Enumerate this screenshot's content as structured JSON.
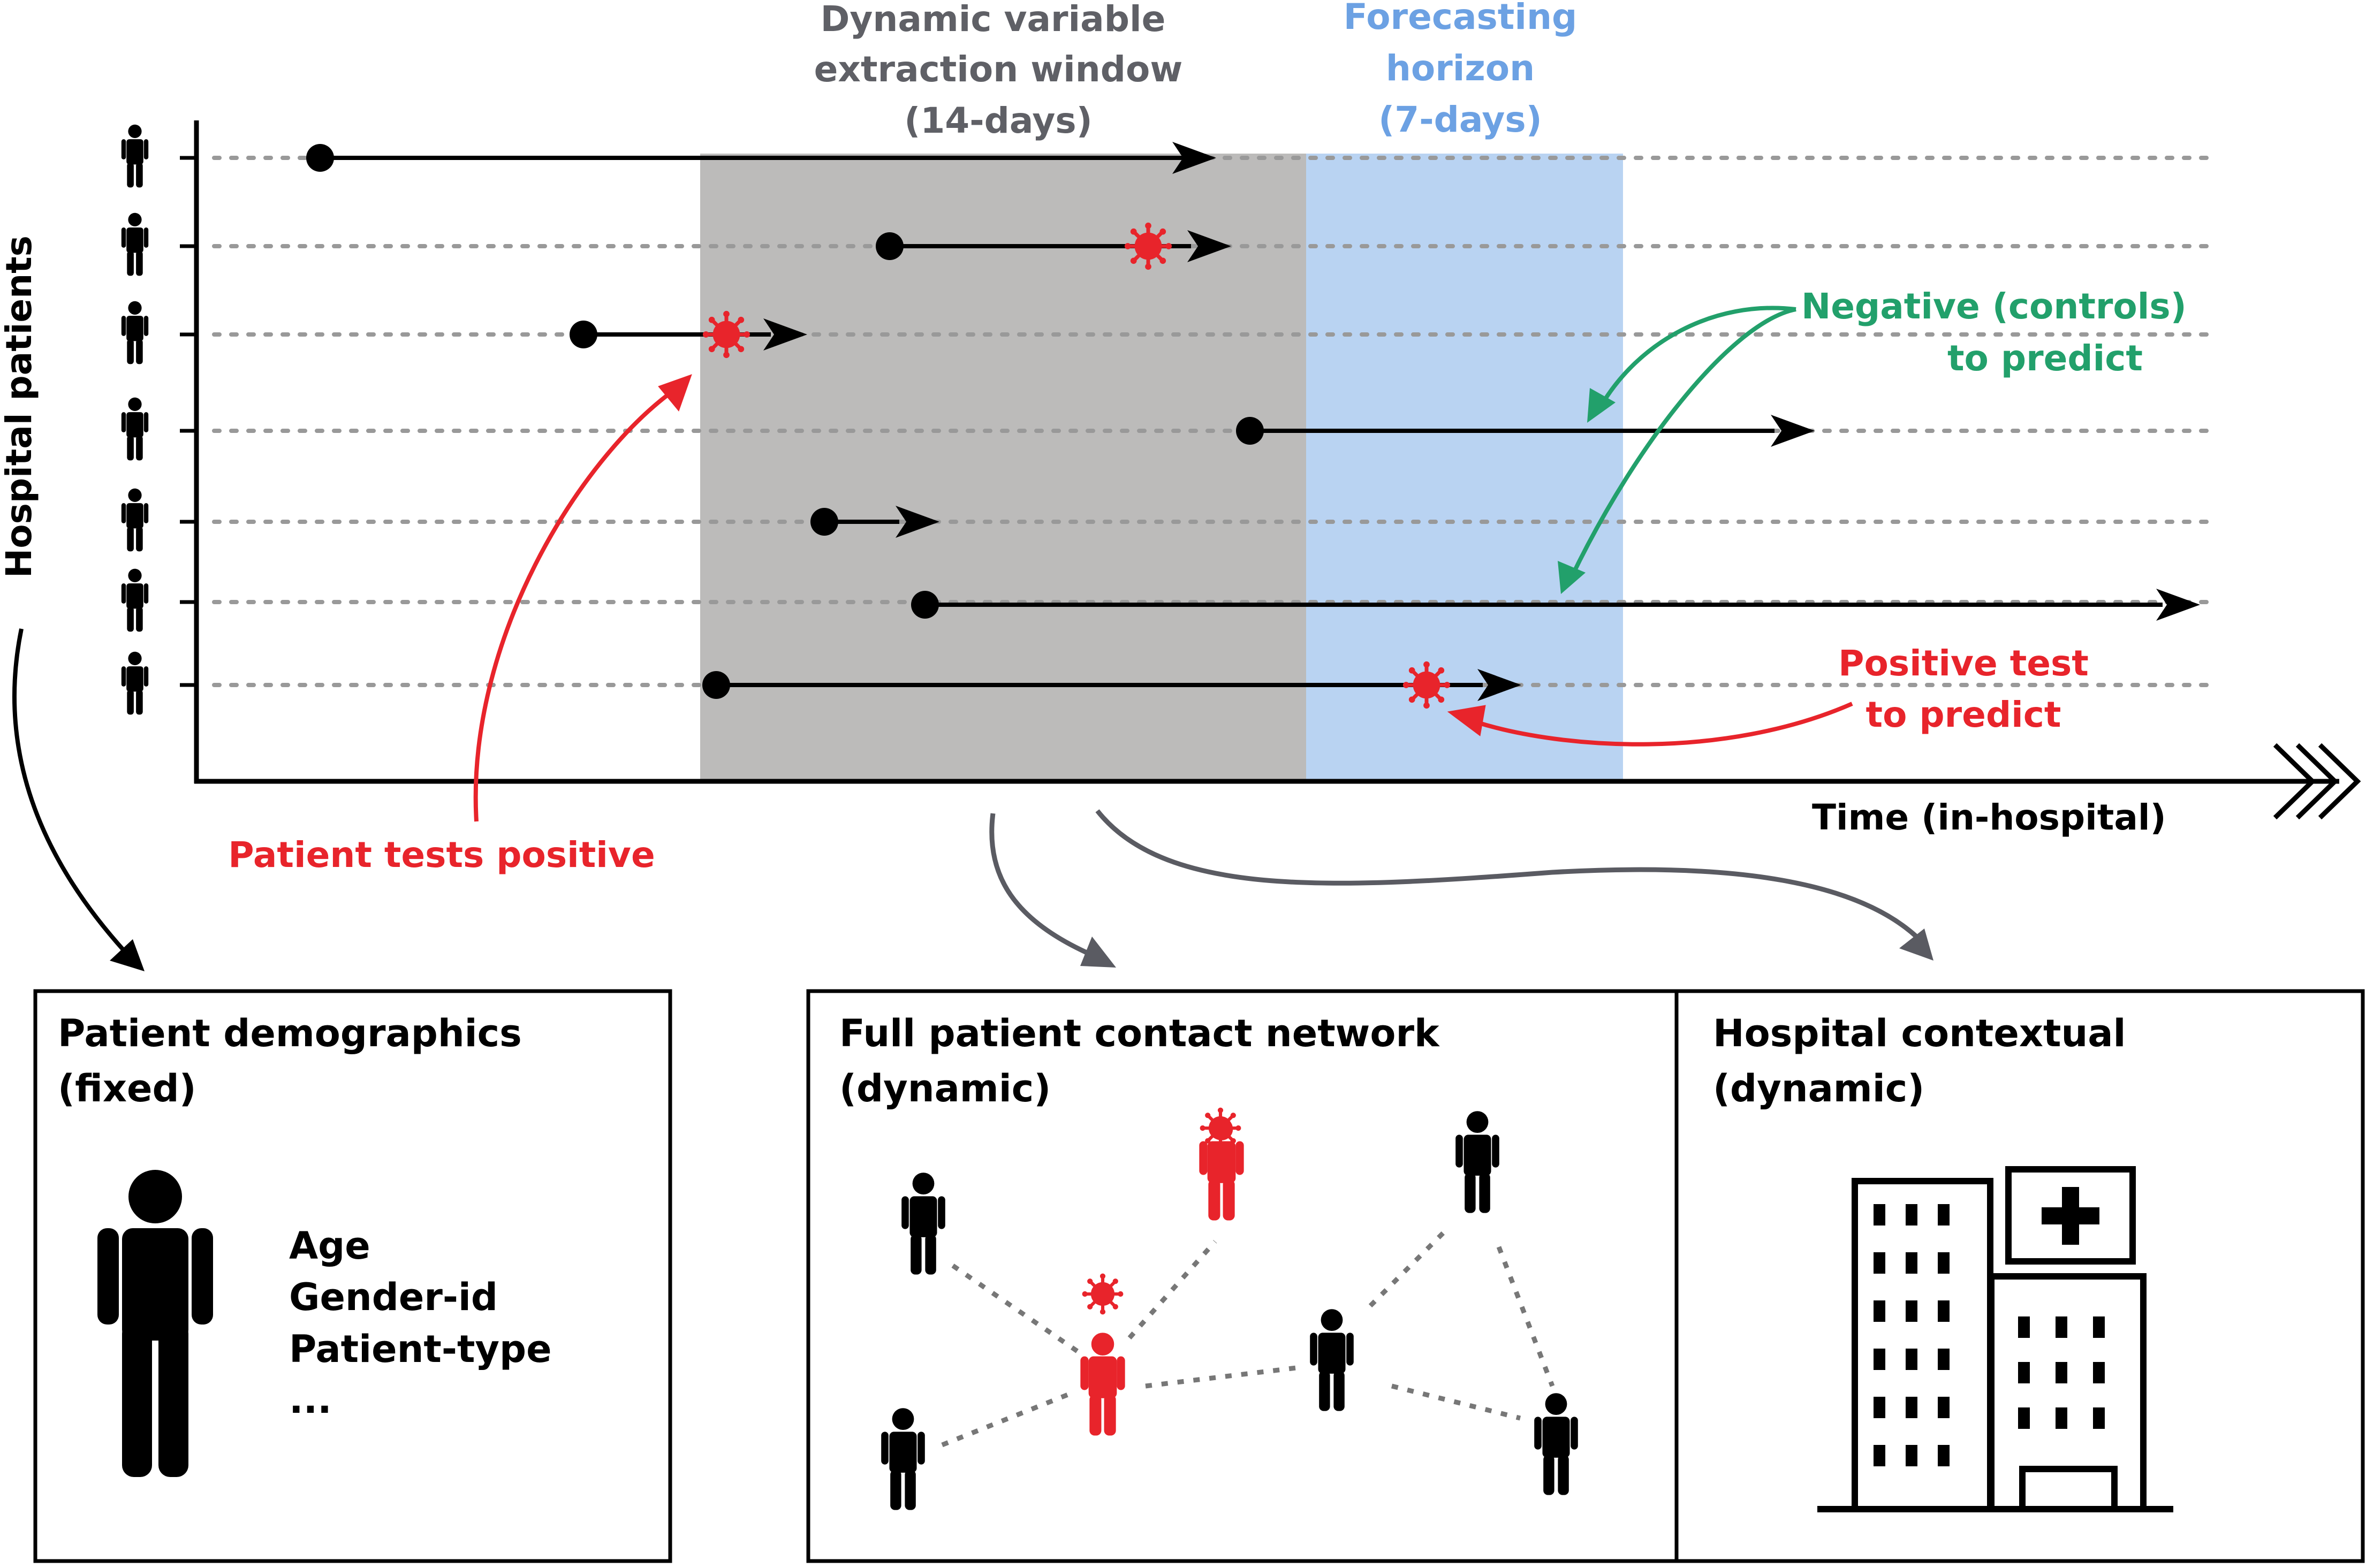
{
  "timeline": {
    "y_axis_label": "Hospital patients",
    "x_axis_label": "Time (in-hospital)",
    "extraction_window": {
      "line1": "Dynamic variable",
      "line2": "extraction window",
      "line3": "(14-days)",
      "color": "#bcbbba",
      "text_color": "#5f6066"
    },
    "forecast_horizon": {
      "line1": "Forecasting",
      "line2": "horizon",
      "line3": "(7-days)",
      "color": "#b9d3f2",
      "text_color": "#6ca1e3"
    },
    "annotations": {
      "patient_positive": "Patient tests positive",
      "negative_line1": "Negative (controls)",
      "negative_line2": "to predict",
      "positive_line1": "Positive test",
      "positive_line2": "to predict"
    },
    "colors": {
      "red": "#e8242b",
      "green": "#22a06b",
      "gray_arrow": "#5a5b62"
    }
  },
  "panels": {
    "demographics": {
      "title_line1": "Patient demographics",
      "title_line2": "(fixed)",
      "items": [
        "Age",
        "Gender-id",
        "Patient-type",
        "..."
      ]
    },
    "contact_network": {
      "title_line1": "Full patient contact network",
      "title_line2": "(dynamic)"
    },
    "hospital_contextual": {
      "title_line1": "Hospital contextual",
      "title_line2": "(dynamic)"
    }
  }
}
